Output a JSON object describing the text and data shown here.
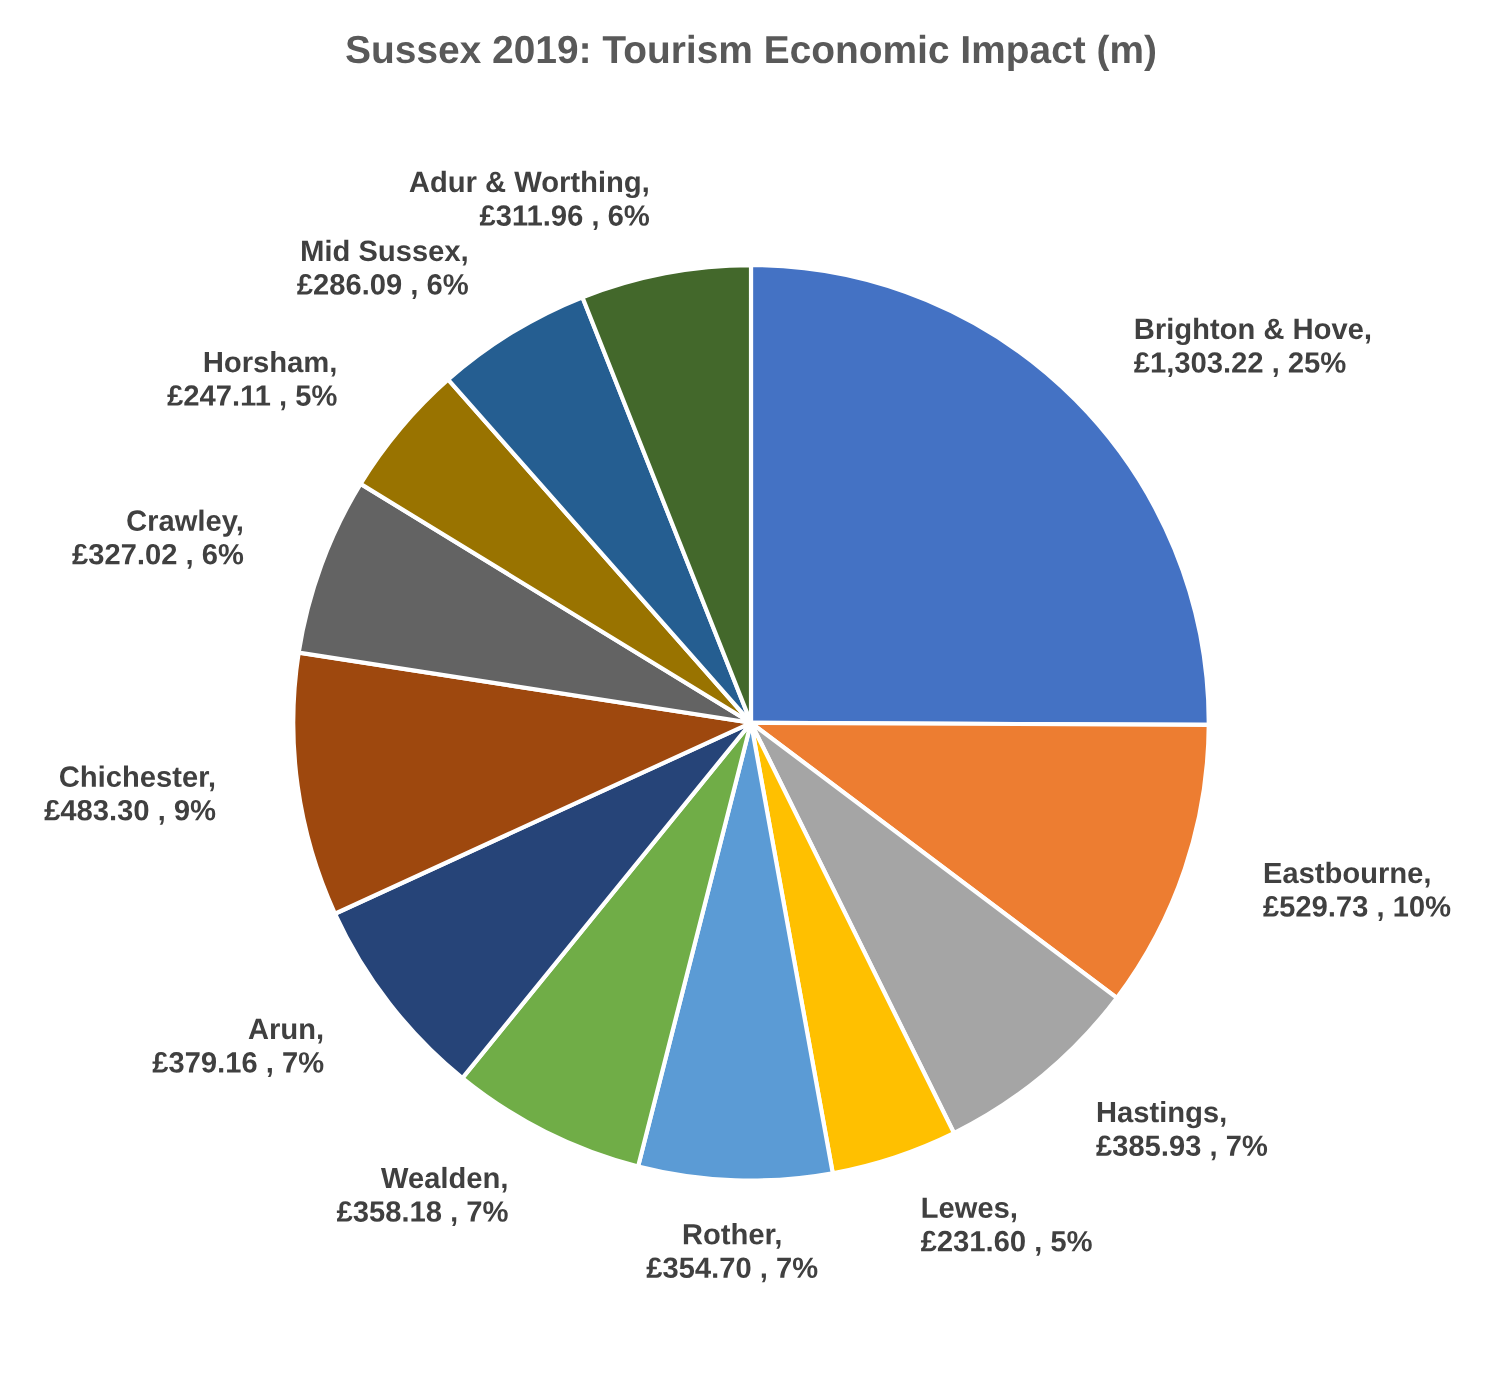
{
  "chart_data": {
    "type": "pie",
    "title": "Sussex 2019: Tourism Economic Impact (m)",
    "categories": [
      "Brighton & Hove",
      "Eastbourne",
      "Hastings",
      "Lewes",
      "Rother",
      "Wealden",
      "Arun",
      "Chichester",
      "Crawley",
      "Horsham",
      "Mid Sussex",
      "Adur & Worthing"
    ],
    "values": [
      1303.22,
      529.73,
      385.93,
      231.6,
      354.7,
      358.18,
      379.16,
      483.3,
      327.02,
      247.11,
      286.09,
      311.96
    ],
    "value_labels": [
      ",\n£1,303.22 , 25%",
      ",\n£529.73 , 10%",
      ",\n£385.93 , 7%",
      ",\n£231.60 , 5%",
      ",\n£354.70 , 7%",
      ",\n£358.18 , 7%",
      ",\n£379.16 , 7%",
      ",\n£483.30 , 9%",
      ",\n£327.02 , 6%",
      ",\n£247.11 , 5%",
      ",\n£286.09 , 6%",
      ",\n£311.96 , 6%"
    ],
    "colors": [
      "#4472c4",
      "#ed7d31",
      "#a5a5a5",
      "#ffc000",
      "#5b9bd5",
      "#70ad47",
      "#264478",
      "#9e480e",
      "#636363",
      "#997300",
      "#255e91",
      "#43682b"
    ],
    "legend": false
  }
}
